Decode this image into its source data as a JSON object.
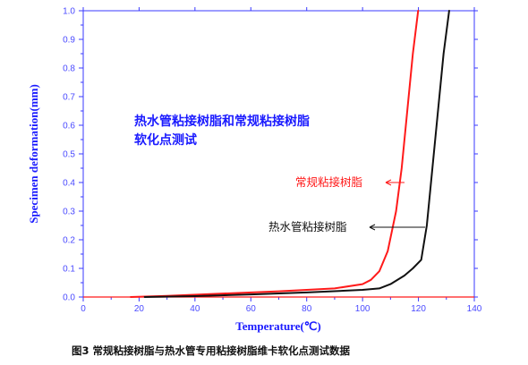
{
  "caption": "图3 常规粘接树脂与热水管专用粘接树脂维卡软化点测试数据",
  "chart_data": {
    "type": "line",
    "title_lines": [
      "热水管粘接树脂和常规粘接树脂",
      "软化点测试"
    ],
    "xlabel": "Temperature(℃)",
    "ylabel": "Specimen deformation(mm)",
    "xlim": [
      0,
      140
    ],
    "ylim": [
      0,
      1.0
    ],
    "xticks": [
      0,
      20,
      40,
      60,
      80,
      100,
      120,
      140
    ],
    "yticks": [
      0.0,
      0.1,
      0.2,
      0.3,
      0.4,
      0.5,
      0.6,
      0.7,
      0.8,
      0.9,
      1.0
    ],
    "ytick_labels": [
      "0.0",
      "0.1",
      "0.2",
      "0.3",
      "0.4",
      "0.5",
      "0.6",
      "0.7",
      "0.8",
      "0.9",
      "1.0"
    ],
    "grid": false,
    "series": [
      {
        "name": "常规粘接树脂",
        "color": "#ff1a1a",
        "x": [
          17,
          30,
          50,
          70,
          90,
          100,
          103,
          106,
          109,
          112,
          114,
          116,
          118,
          119.9
        ],
        "y": [
          0,
          0.004,
          0.012,
          0.02,
          0.03,
          0.045,
          0.06,
          0.09,
          0.16,
          0.3,
          0.45,
          0.65,
          0.85,
          1.0
        ]
      },
      {
        "name": "热水管粘接树脂",
        "color": "#111111",
        "x": [
          22,
          40,
          60,
          80,
          100,
          106,
          110,
          115,
          118,
          121,
          123,
          125,
          127,
          129,
          131
        ],
        "y": [
          0,
          0.003,
          0.009,
          0.016,
          0.025,
          0.03,
          0.045,
          0.075,
          0.1,
          0.13,
          0.25,
          0.45,
          0.65,
          0.85,
          1.0
        ]
      }
    ]
  }
}
